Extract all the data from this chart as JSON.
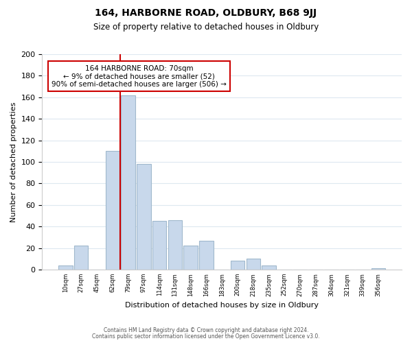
{
  "title": "164, HARBORNE ROAD, OLDBURY, B68 9JJ",
  "subtitle": "Size of property relative to detached houses in Oldbury",
  "xlabel": "Distribution of detached houses by size in Oldbury",
  "ylabel": "Number of detached properties",
  "bar_color": "#c8d8eb",
  "bar_edge_color": "#a0b8cc",
  "annotation_box_color": "#ffffff",
  "annotation_box_edge": "#cc0000",
  "vline_color": "#cc0000",
  "tick_labels": [
    "10sqm",
    "27sqm",
    "45sqm",
    "62sqm",
    "79sqm",
    "97sqm",
    "114sqm",
    "131sqm",
    "148sqm",
    "166sqm",
    "183sqm",
    "200sqm",
    "218sqm",
    "235sqm",
    "252sqm",
    "270sqm",
    "287sqm",
    "304sqm",
    "321sqm",
    "339sqm",
    "356sqm"
  ],
  "bar_heights": [
    4,
    22,
    0,
    110,
    162,
    98,
    45,
    46,
    22,
    27,
    0,
    8,
    10,
    4,
    0,
    0,
    0,
    0,
    0,
    0,
    1
  ],
  "vline_x": 3.5,
  "ylim": [
    0,
    200
  ],
  "yticks": [
    0,
    20,
    40,
    60,
    80,
    100,
    120,
    140,
    160,
    180,
    200
  ],
  "annotation_text": "164 HARBORNE ROAD: 70sqm\n← 9% of detached houses are smaller (52)\n90% of semi-detached houses are larger (506) →",
  "footer1": "Contains HM Land Registry data © Crown copyright and database right 2024.",
  "footer2": "Contains public sector information licensed under the Open Government Licence v3.0.",
  "background_color": "#ffffff",
  "grid_color": "#dde8f0"
}
